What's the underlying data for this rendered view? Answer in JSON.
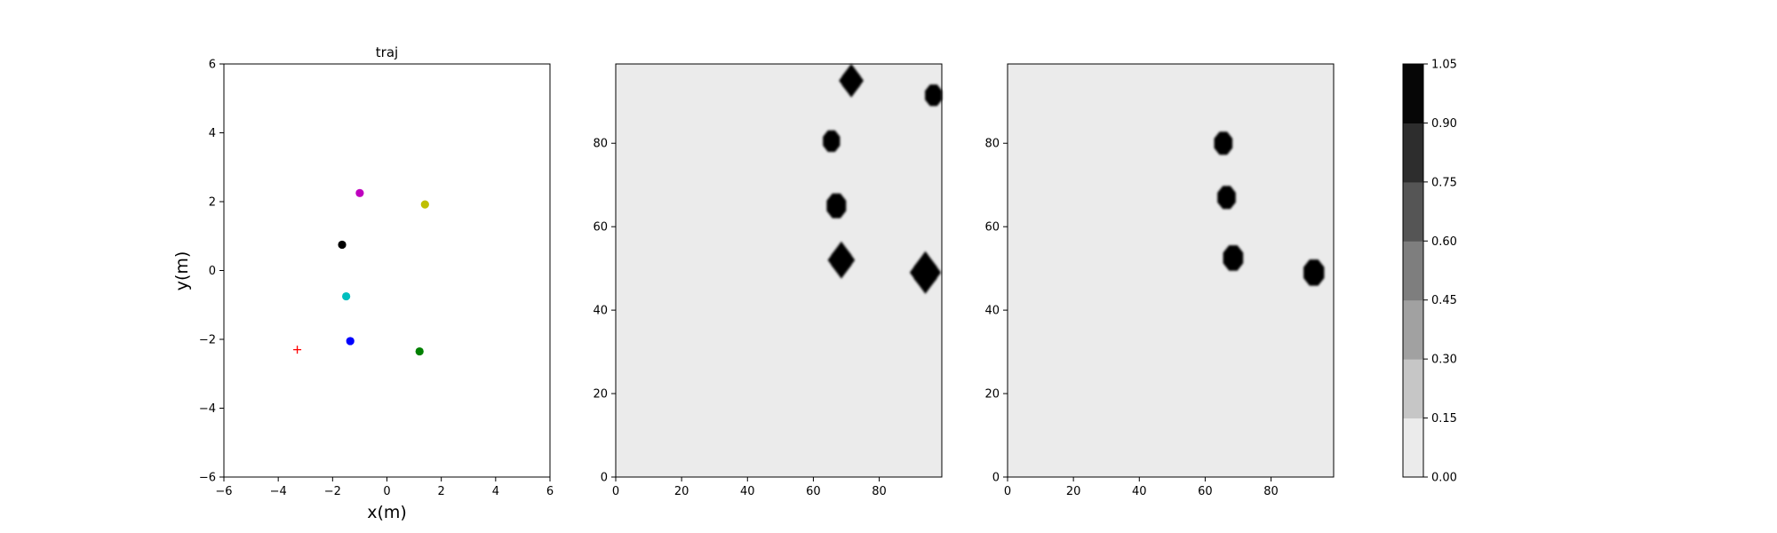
{
  "chart_data": [
    {
      "type": "scatter",
      "title": "traj",
      "xlabel": "x(m)",
      "ylabel": "y(m)",
      "xlim": [
        -6,
        6
      ],
      "ylim": [
        -6,
        6
      ],
      "xticks": [
        -6,
        -4,
        -2,
        0,
        2,
        4,
        6
      ],
      "yticks": [
        -6,
        -4,
        -2,
        0,
        2,
        4,
        6
      ],
      "grid": false,
      "points": [
        {
          "x": -1.0,
          "y": 2.25,
          "marker": "dot",
          "color": "#bf00bf"
        },
        {
          "x": 1.4,
          "y": 1.92,
          "marker": "dot",
          "color": "#bfbf00"
        },
        {
          "x": -1.65,
          "y": 0.75,
          "marker": "dot",
          "color": "#000000"
        },
        {
          "x": -1.5,
          "y": -0.75,
          "marker": "dot",
          "color": "#00bfbf"
        },
        {
          "x": -1.35,
          "y": -2.05,
          "marker": "dot",
          "color": "#0000ff"
        },
        {
          "x": 1.2,
          "y": -2.35,
          "marker": "dot",
          "color": "#008000"
        },
        {
          "x": -3.3,
          "y": -2.3,
          "marker": "plus",
          "color": "#ff0000"
        }
      ]
    },
    {
      "type": "heatmap",
      "xlim": [
        0,
        99
      ],
      "ylim": [
        0,
        99
      ],
      "xticks": [
        0,
        20,
        40,
        60,
        80
      ],
      "yticks": [
        0,
        20,
        40,
        60,
        80
      ],
      "background_value": 0.0,
      "blobs": [
        {
          "x": 71.5,
          "y": 95,
          "r": 3.0,
          "spiky": true
        },
        {
          "x": 96.5,
          "y": 91.5,
          "r": 2.8,
          "spiky": false
        },
        {
          "x": 65.5,
          "y": 80.5,
          "r": 2.8,
          "spiky": false
        },
        {
          "x": 67,
          "y": 65,
          "r": 3.2,
          "spiky": false
        },
        {
          "x": 68.5,
          "y": 52,
          "r": 3.3,
          "spiky": true
        },
        {
          "x": 94,
          "y": 49,
          "r": 3.8,
          "spiky": true
        }
      ]
    },
    {
      "type": "heatmap",
      "xlim": [
        0,
        99
      ],
      "ylim": [
        0,
        99
      ],
      "xticks": [
        0,
        20,
        40,
        60,
        80
      ],
      "yticks": [
        0,
        20,
        40,
        60,
        80
      ],
      "background_value": 0.0,
      "blobs": [
        {
          "x": 65.5,
          "y": 80,
          "r": 3.0,
          "spiky": false
        },
        {
          "x": 66.5,
          "y": 67,
          "r": 3.0,
          "spiky": false
        },
        {
          "x": 68.5,
          "y": 52.5,
          "r": 3.3,
          "spiky": false
        },
        {
          "x": 93,
          "y": 49,
          "r": 3.4,
          "spiky": false
        }
      ]
    }
  ],
  "colorbar": {
    "ticks": [
      "0.00",
      "0.15",
      "0.30",
      "0.45",
      "0.60",
      "0.75",
      "0.90",
      "1.05"
    ],
    "levels": [
      "#ebebeb",
      "#c6c6c6",
      "#a1a1a1",
      "#7e7e7e",
      "#555555",
      "#2d2d2d",
      "#060606"
    ]
  }
}
